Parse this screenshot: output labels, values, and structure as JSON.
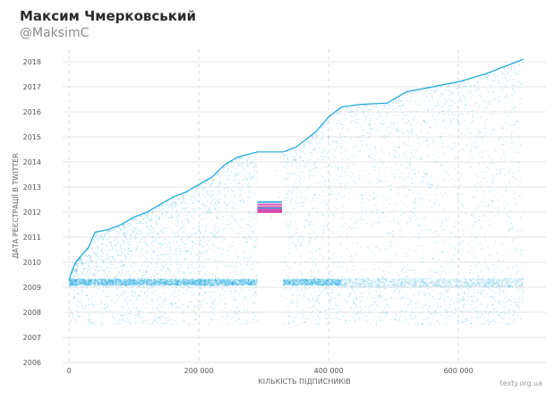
{
  "header": {
    "title": "Максим Чмерковський",
    "handle": "@MaksimC"
  },
  "footer": {
    "credit": "texty.org.ua"
  },
  "colors": {
    "points": "#1ba7dd",
    "highlight_magenta": "#d63aa8",
    "highlight_blue": "#1f9fd8",
    "grid": "#e6e6e6"
  },
  "chart_data": {
    "type": "scatter",
    "xlabel": "КІЛЬКІСТЬ ПІДПИСНИКІВ",
    "ylabel": "ДАТА РЕЄСТРАЦІЇ В TWITTER",
    "xlim": [
      -10000,
      735000
    ],
    "ylim": [
      2006,
      2018.5
    ],
    "x_ticks": [
      {
        "value": 0,
        "label": "0"
      },
      {
        "value": 200000,
        "label": "200 000"
      },
      {
        "value": 400000,
        "label": "400 000"
      },
      {
        "value": 600000,
        "label": "600 000"
      }
    ],
    "y_ticks": [
      2006,
      2007,
      2008,
      2009,
      2010,
      2011,
      2012,
      2013,
      2014,
      2015,
      2016,
      2017,
      2018
    ],
    "grid": {
      "horizontal": true,
      "vertical_dashed": true
    },
    "max_date_curve": [
      [
        0,
        2009.3
      ],
      [
        5000,
        2009.7
      ],
      [
        10000,
        2010.0
      ],
      [
        20000,
        2010.3
      ],
      [
        30000,
        2010.6
      ],
      [
        40000,
        2011.2
      ],
      [
        60000,
        2011.3
      ],
      [
        80000,
        2011.5
      ],
      [
        100000,
        2011.8
      ],
      [
        120000,
        2012.0
      ],
      [
        140000,
        2012.3
      ],
      [
        160000,
        2012.6
      ],
      [
        180000,
        2012.8
      ],
      [
        200000,
        2013.1
      ],
      [
        220000,
        2013.4
      ],
      [
        240000,
        2013.9
      ],
      [
        260000,
        2014.2
      ],
      [
        290000,
        2014.4
      ],
      [
        330000,
        2014.4
      ],
      [
        350000,
        2014.6
      ],
      [
        380000,
        2015.2
      ],
      [
        400000,
        2015.8
      ],
      [
        420000,
        2016.2
      ],
      [
        450000,
        2016.3
      ],
      [
        490000,
        2016.35
      ],
      [
        520000,
        2016.8
      ],
      [
        560000,
        2017.0
      ],
      [
        600000,
        2017.2
      ],
      [
        640000,
        2017.5
      ],
      [
        680000,
        2017.9
      ],
      [
        700000,
        2018.1
      ]
    ],
    "dense_band": {
      "y_center": 2009.2,
      "x_from": 0,
      "x_to": 420000
    },
    "gap": {
      "x_from": 290000,
      "x_to": 330000
    },
    "highlight_band": {
      "x_from": 290000,
      "x_to": 328000,
      "y_from": 2011.95,
      "y_to": 2012.45
    }
  }
}
